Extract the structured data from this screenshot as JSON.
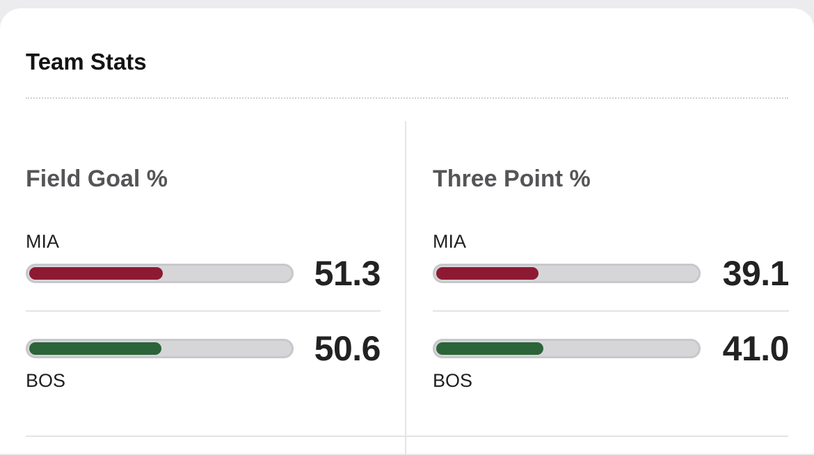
{
  "card": {
    "title": "Team Stats"
  },
  "stats": [
    {
      "title": "Field Goal %",
      "team1": {
        "abbr": "MIA",
        "value": "51.3",
        "pct": 51.3,
        "color": "#8d1a32"
      },
      "team2": {
        "abbr": "BOS",
        "value": "50.6",
        "pct": 50.6,
        "color": "#2b6438"
      }
    },
    {
      "title": "Three Point %",
      "team1": {
        "abbr": "MIA",
        "value": "39.1",
        "pct": 39.1,
        "color": "#8d1a32"
      },
      "team2": {
        "abbr": "BOS",
        "value": "41.0",
        "pct": 41.0,
        "color": "#2b6438"
      }
    }
  ]
}
